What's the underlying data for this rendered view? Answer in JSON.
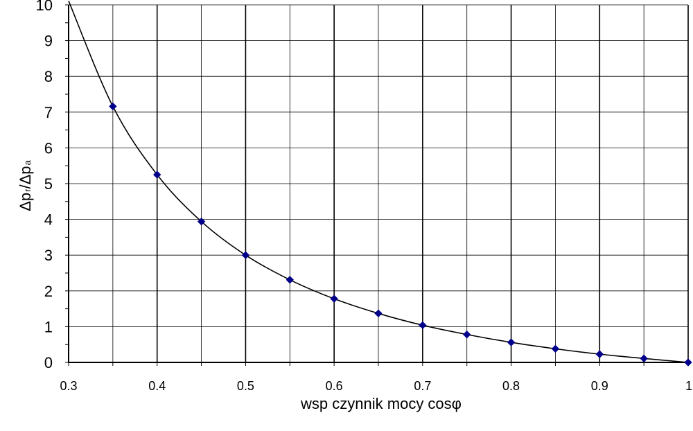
{
  "chart_data": {
    "type": "line",
    "xlabel": "wsp   czynnik mocy cosφ",
    "ylabel": "Δpr/Δpa",
    "ylabel_parts": {
      "delta": "Δ",
      "p": "p",
      "sub_r": "r",
      "slash": "/",
      "sub_a": "a"
    },
    "xlim": [
      0.3,
      1.0
    ],
    "ylim": [
      0,
      10
    ],
    "x_ticks": [
      "0.3",
      "0.4",
      "0.5",
      "0.6",
      "0.7",
      "0.8",
      "0.9",
      "1"
    ],
    "y_ticks": [
      "0",
      "1",
      "2",
      "3",
      "4",
      "5",
      "6",
      "7",
      "8",
      "9",
      "10"
    ],
    "grid": true,
    "legend": "none",
    "colors": {
      "line": "#000000",
      "marker": "#00008b",
      "grid": "#000000"
    },
    "series": [
      {
        "x": [
          0.3,
          0.35,
          0.4,
          0.45,
          0.5,
          0.55,
          0.6,
          0.65,
          0.7,
          0.75,
          0.8,
          0.85,
          0.9,
          0.95,
          1.0
        ],
        "y": [
          10.11,
          7.16,
          5.25,
          3.94,
          3.0,
          2.31,
          1.78,
          1.37,
          1.04,
          0.78,
          0.56,
          0.38,
          0.23,
          0.11,
          0.0
        ]
      }
    ]
  }
}
